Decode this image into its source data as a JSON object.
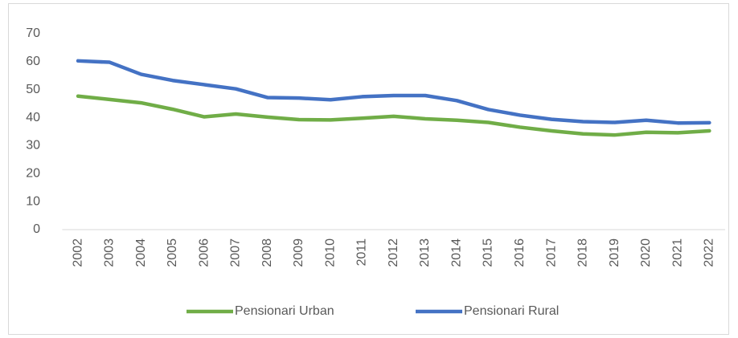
{
  "chart_data": {
    "type": "line",
    "categories": [
      "2002",
      "2003",
      "2004",
      "2005",
      "2006",
      "2007",
      "2008",
      "2009",
      "2010",
      "2011",
      "2012",
      "2013",
      "2014",
      "2015",
      "2016",
      "2017",
      "2018",
      "2019",
      "2020",
      "2021",
      "2022"
    ],
    "series": [
      {
        "name": "Pensionari Urban",
        "color": "#70ad47",
        "values": [
          47.7,
          46.5,
          45.3,
          43.0,
          40.3,
          41.3,
          40.2,
          39.3,
          39.2,
          39.8,
          40.5,
          39.6,
          39.1,
          38.3,
          36.6,
          35.3,
          34.2,
          33.8,
          34.8,
          34.6,
          35.3
        ]
      },
      {
        "name": "Pensionari Rural",
        "color": "#4472c4",
        "values": [
          60.3,
          59.8,
          55.5,
          53.3,
          51.8,
          50.3,
          47.2,
          47.0,
          46.4,
          47.5,
          47.9,
          47.9,
          46.1,
          42.9,
          40.9,
          39.4,
          38.6,
          38.3,
          39.1,
          38.1,
          38.2
        ]
      }
    ],
    "ylim": [
      0,
      70
    ],
    "yticks": [
      0,
      10,
      20,
      30,
      40,
      50,
      60,
      70
    ],
    "grid": false,
    "legend": "bottom"
  }
}
